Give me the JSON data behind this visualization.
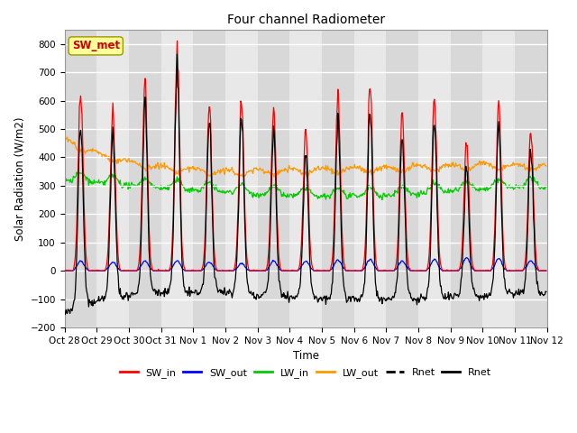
{
  "title": "Four channel Radiometer",
  "xlabel": "Time",
  "ylabel": "Solar Radiation (W/m2)",
  "ylim": [
    -200,
    850
  ],
  "yticks": [
    -200,
    -100,
    0,
    100,
    200,
    300,
    400,
    500,
    600,
    700,
    800
  ],
  "x_labels": [
    "Oct 28",
    "Oct 29",
    "Oct 30",
    "Oct 31",
    "Nov 1",
    "Nov 2",
    "Nov 3",
    "Nov 4",
    "Nov 5",
    "Nov 6",
    "Nov 7",
    "Nov 8",
    "Nov 9",
    "Nov 10",
    "Nov 11",
    "Nov 12"
  ],
  "colors": {
    "SW_in": "#ff0000",
    "SW_out": "#0000ff",
    "LW_in": "#00cc00",
    "LW_out": "#ff9900",
    "Rnet_black": "#000000"
  },
  "annotation_text": "SW_met",
  "annotation_color": "#cc0000",
  "annotation_bg": "#ffff99",
  "background_color": "#e0e0e0",
  "grid_color": "#ffffff",
  "n_days": 15,
  "dt_minutes": 30
}
